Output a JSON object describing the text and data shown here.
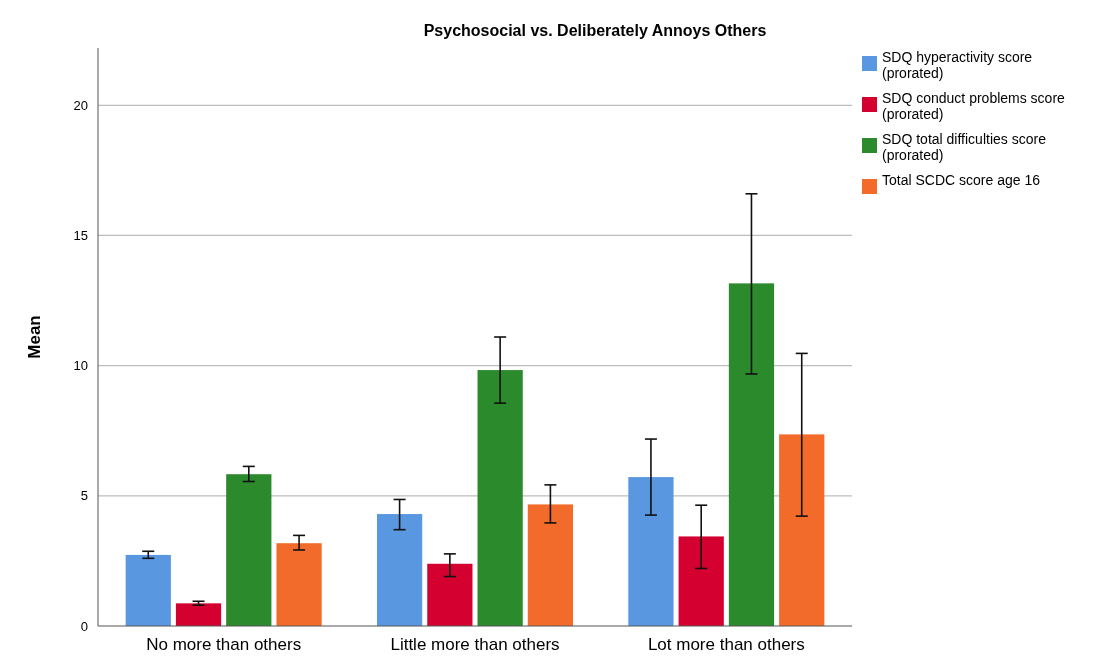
{
  "chart_data": {
    "type": "bar",
    "title": "Psychosocial vs. Deliberately Annoys Others",
    "ylabel": "Mean",
    "categories": [
      "No more than others",
      "Little more than others",
      "Lot more than others"
    ],
    "series": [
      {
        "name": "SDQ hyperactivity score (prorated)",
        "color": "#5a97e1",
        "values": [
          2.73,
          4.3,
          5.72
        ],
        "errors": [
          [
            2.6,
            2.87
          ],
          [
            3.7,
            4.86
          ],
          [
            4.26,
            7.18
          ]
        ]
      },
      {
        "name": "SDQ conduct problems score (prorated)",
        "color": "#d4002f",
        "values": [
          0.87,
          2.39,
          3.44
        ],
        "errors": [
          [
            0.8,
            0.95
          ],
          [
            1.9,
            2.77
          ],
          [
            2.21,
            4.64
          ]
        ]
      },
      {
        "name": "SDQ total difficulties score (prorated)",
        "color": "#2b8a2b",
        "values": [
          5.83,
          9.83,
          13.16
        ],
        "errors": [
          [
            5.55,
            6.13
          ],
          [
            8.56,
            11.1
          ],
          [
            9.68,
            16.6
          ]
        ]
      },
      {
        "name": "Total SCDC score age 16",
        "color": "#f26b2a",
        "values": [
          3.18,
          4.67,
          7.36
        ],
        "errors": [
          [
            2.92,
            3.48
          ],
          [
            3.96,
            5.42
          ],
          [
            4.22,
            10.47
          ]
        ]
      }
    ],
    "ylim": [
      0,
      22.2
    ],
    "yticks": [
      0,
      5,
      10,
      15,
      20
    ],
    "grid": "y",
    "legend": "top right"
  }
}
